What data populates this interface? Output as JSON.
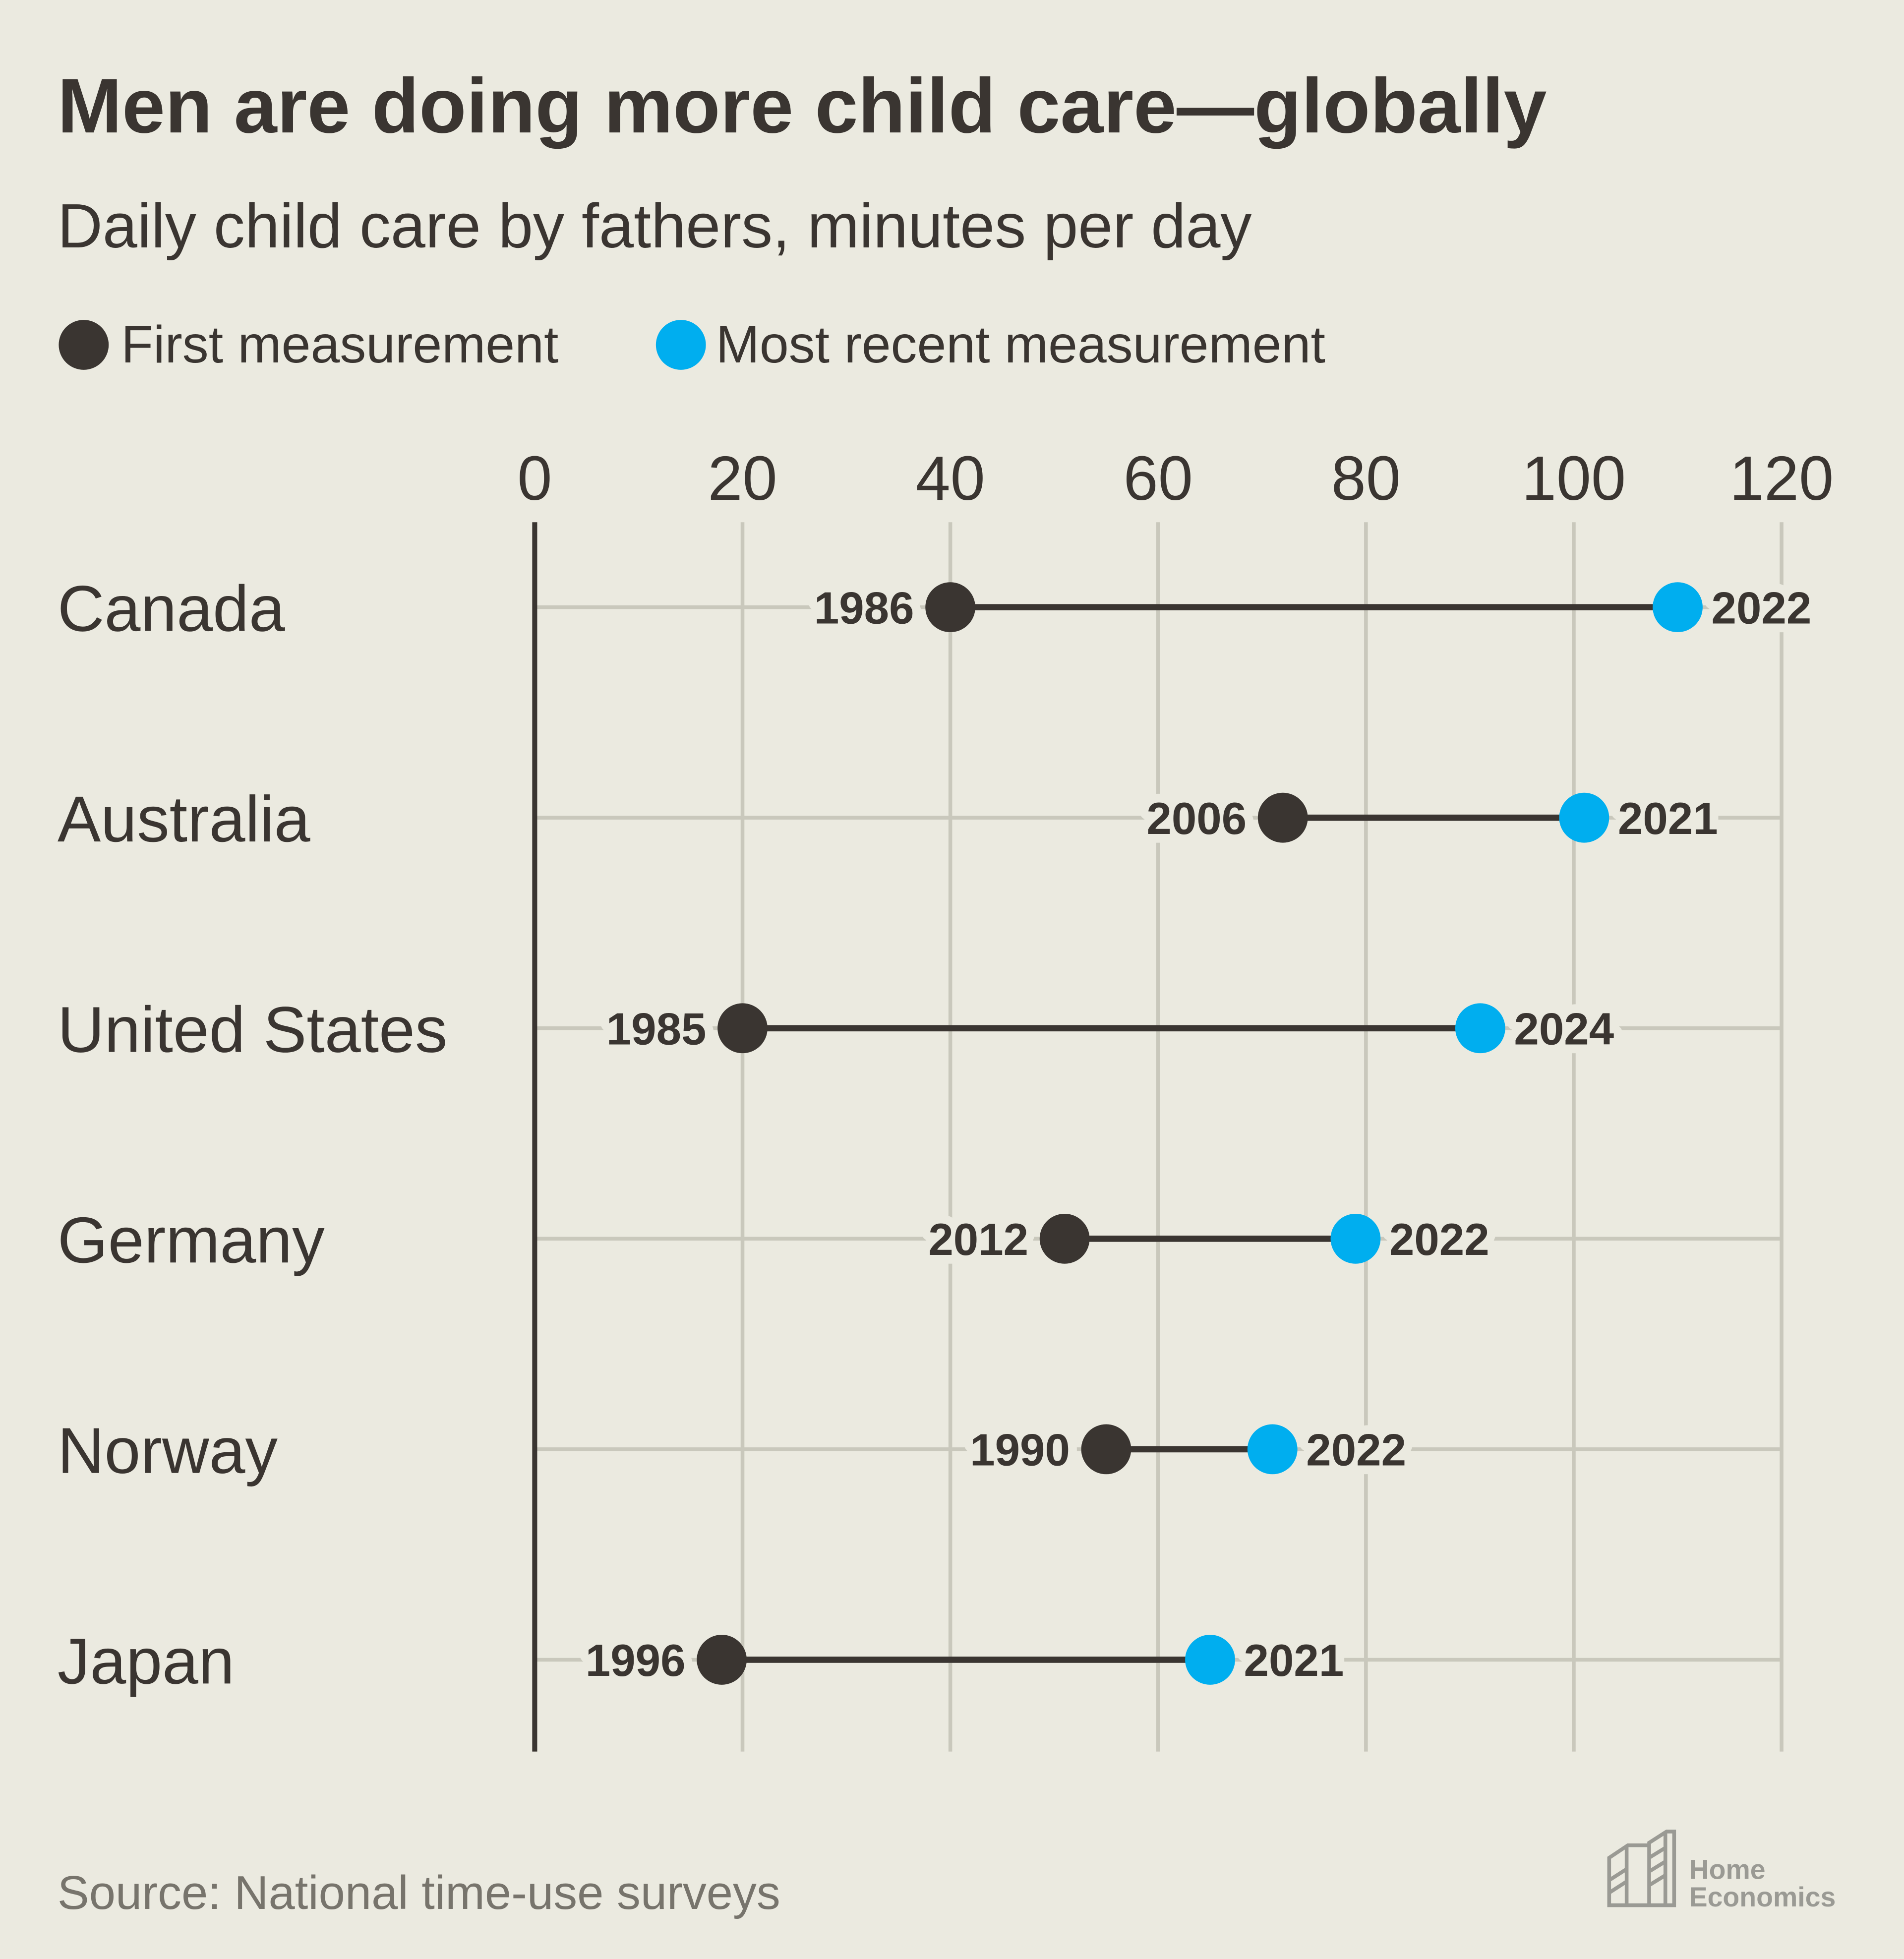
{
  "chart_data": {
    "type": "dumbbell",
    "title": "Men are doing more child care—globally",
    "subtitle": "Daily child care by fathers, minutes per day",
    "legend": [
      {
        "label": "First measurement",
        "color": "#3a3531"
      },
      {
        "label": "Most recent measurement",
        "color": "#00aeef"
      }
    ],
    "xlim": [
      0,
      120
    ],
    "xticks": [
      0,
      20,
      40,
      60,
      80,
      100,
      120
    ],
    "grid": true,
    "rows": [
      {
        "country": "Canada",
        "first_year": "1986",
        "first": 40,
        "recent_year": "2022",
        "recent": 110
      },
      {
        "country": "Australia",
        "first_year": "2006",
        "first": 72,
        "recent_year": "2021",
        "recent": 101
      },
      {
        "country": "United States",
        "first_year": "1985",
        "first": 20,
        "recent_year": "2024",
        "recent": 91
      },
      {
        "country": "Germany",
        "first_year": "2012",
        "first": 51,
        "recent_year": "2022",
        "recent": 79
      },
      {
        "country": "Norway",
        "first_year": "1990",
        "first": 55,
        "recent_year": "2022",
        "recent": 71
      },
      {
        "country": "Japan",
        "first_year": "1996",
        "first": 18,
        "recent_year": "2021",
        "recent": 65
      }
    ],
    "source": "Source: National time-use surveys"
  },
  "logo": {
    "line1": "Home",
    "line2": "Economics"
  }
}
